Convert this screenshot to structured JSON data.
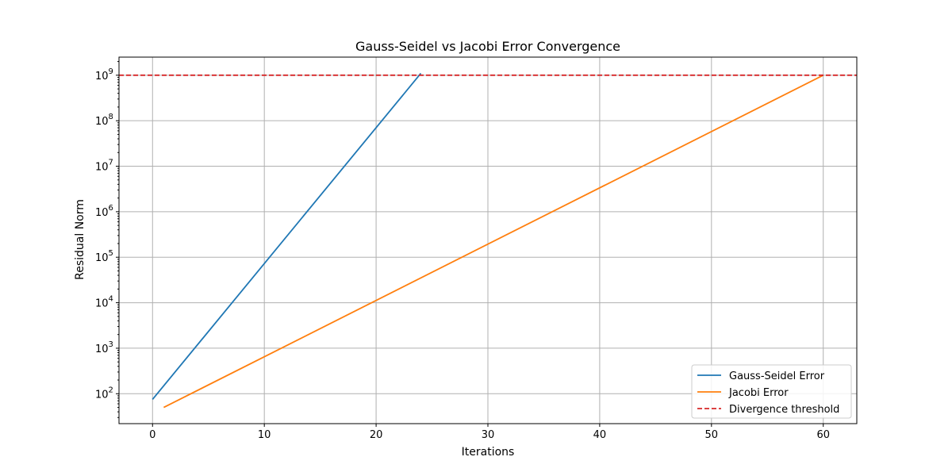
{
  "chart_data": {
    "type": "line",
    "title": "Gauss-Seidel vs Jacobi Error Convergence",
    "xlabel": "Iterations",
    "ylabel": "Residual Norm",
    "xlim": [
      -3,
      63
    ],
    "ylim": [
      22,
      2500000000
    ],
    "yscale": "log",
    "grid": true,
    "legend_position": "lower right",
    "xticks": [
      0,
      10,
      20,
      30,
      40,
      50,
      60
    ],
    "xtick_labels": [
      "0",
      "10",
      "20",
      "30",
      "40",
      "50",
      "60"
    ],
    "yticks": [
      100,
      1000,
      10000,
      100000,
      1000000,
      10000000,
      100000000,
      1000000000
    ],
    "ytick_base": "10",
    "ytick_exponents": [
      "2",
      "3",
      "4",
      "5",
      "6",
      "7",
      "8",
      "9"
    ],
    "series": [
      {
        "name": "Gauss-Seidel Error",
        "color": "#1f77b4",
        "style": "solid",
        "x": [
          0,
          24
        ],
        "y": [
          75,
          1100000000
        ]
      },
      {
        "name": "Jacobi Error",
        "color": "#ff7f0e",
        "style": "solid",
        "x": [
          1,
          60
        ],
        "y": [
          50,
          1000000000
        ]
      },
      {
        "name": "Divergence threshold",
        "color": "#d62728",
        "style": "dashed",
        "type": "hline",
        "y": 1000000000
      }
    ]
  }
}
